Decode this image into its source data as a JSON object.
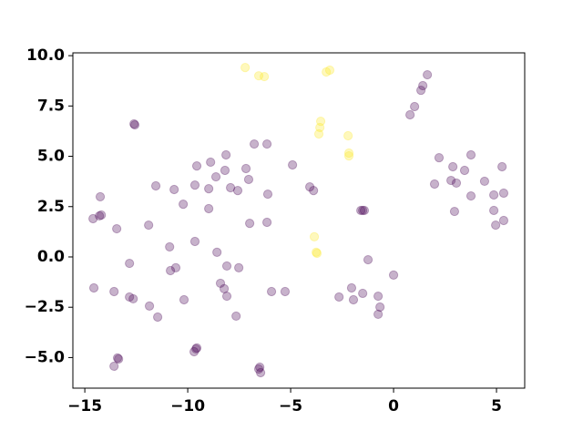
{
  "chart_data": {
    "type": "scatter",
    "xlim": [
      -15.58,
      6.37
    ],
    "ylim": [
      -6.52,
      10.14
    ],
    "xticks": [
      {
        "value": -15,
        "label": "−15"
      },
      {
        "value": -10,
        "label": "−10"
      },
      {
        "value": -5,
        "label": "−5"
      },
      0,
      5
    ],
    "yticks": [
      {
        "value": -5,
        "label": "−5.0"
      },
      {
        "value": -2.5,
        "label": "−2.5"
      },
      {
        "value": 0,
        "label": "0.0"
      },
      2.5,
      {
        "value": 5,
        "label": "5.0"
      },
      7.5,
      {
        "value": 10,
        "label": "10.0"
      }
    ],
    "series": [
      {
        "color": "#440154",
        "x": [
          -12.61,
          -12.57,
          1.64,
          1.42,
          1.33,
          1.02,
          0.8,
          2.21,
          1.99,
          2.88,
          3.76,
          3.45,
          2.79,
          3.05,
          4.42,
          5.27,
          3.76,
          2.96,
          4.87,
          5.35,
          4.87,
          4.96,
          5.35,
          0,
          -0.75,
          -0.66,
          -0.75,
          -1.5,
          -1.24,
          -2.04,
          -1.95,
          -2.65,
          -1.59,
          -1.42,
          -1.5,
          -4.07,
          -3.89,
          -4.91,
          -5.93,
          -5.27,
          -6.11,
          -6.15,
          -6.77,
          -6.99,
          -6.15,
          -7.17,
          -7.04,
          -7.57,
          -8.14,
          -8.19,
          -8.63,
          -7.92,
          -8.89,
          -8.98,
          -8.98,
          -9.56,
          -9.65,
          -10.22,
          -10.66,
          -11.55,
          -11.9,
          -10.88,
          -9.65,
          -10.58,
          -10.84,
          -8.58,
          -8.1,
          -7.52,
          -8.41,
          -8.23,
          -8.1,
          -10.18,
          -11.86,
          -11.46,
          -7.65,
          -9.6,
          -9.69,
          -9.56,
          -6.55,
          -6.46,
          -6.5,
          -13.36,
          -13.41,
          -13.58,
          -14.56,
          -13.58,
          -12.83,
          -12.65,
          -12.83,
          -13.45,
          -14.2,
          -14.29,
          -14.6,
          -14.25
        ],
        "y": [
          6.61,
          6.56,
          9.05,
          8.51,
          8.28,
          7.47,
          7.06,
          4.93,
          3.62,
          4.48,
          5.07,
          4.3,
          3.8,
          3.67,
          3.76,
          4.48,
          3.03,
          2.26,
          3.08,
          3.17,
          2.31,
          1.58,
          1.81,
          -0.9,
          -1.95,
          -2.49,
          -2.85,
          -1.81,
          -0.14,
          -1.54,
          -2.13,
          -1.99,
          2.31,
          2.31,
          2.31,
          3.48,
          3.3,
          4.57,
          -1.72,
          -1.72,
          3.12,
          5.61,
          5.61,
          1.67,
          1.72,
          4.39,
          3.85,
          3.3,
          5.07,
          4.3,
          3.98,
          3.44,
          4.71,
          3.39,
          2.4,
          4.52,
          3.57,
          2.62,
          3.35,
          3.53,
          1.58,
          0.5,
          0.77,
          -0.54,
          -0.68,
          0.23,
          -0.45,
          -0.54,
          -1.31,
          -1.58,
          -1.95,
          -2.13,
          -2.44,
          -2.99,
          -2.94,
          -4.57,
          -4.71,
          -4.52,
          -5.57,
          -5.75,
          -5.48,
          -5.07,
          -5.02,
          -5.43,
          -1.54,
          -1.72,
          -1.99,
          -2.08,
          -0.32,
          1.4,
          2.08,
          2.04,
          1.9,
          2.99
        ]
      },
      {
        "color": "#fde725",
        "x": [
          -7.21,
          -6.55,
          -6.28,
          -3.1,
          -3.27,
          -3.54,
          -3.58,
          -3.63,
          -2.21,
          -2.17,
          -2.17,
          -3.85,
          -3.76,
          -3.72
        ],
        "y": [
          9.41,
          9.0,
          8.96,
          9.28,
          9.19,
          6.74,
          6.43,
          6.11,
          6.02,
          5.16,
          5.02,
          1.0,
          0.23,
          0.18
        ]
      }
    ]
  }
}
